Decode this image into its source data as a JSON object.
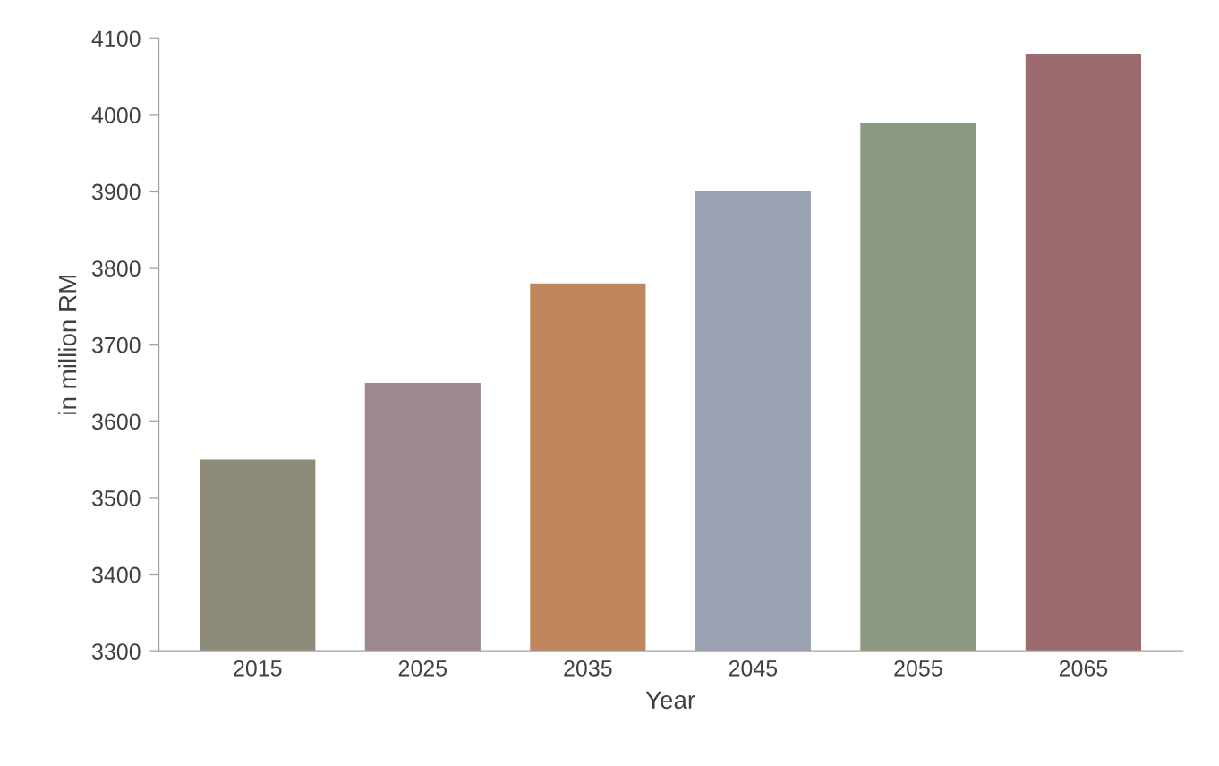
{
  "chart_data": {
    "type": "bar",
    "xlabel": "Year",
    "ylabel": "in million RM",
    "categories": [
      "2015",
      "2025",
      "2035",
      "2045",
      "2055",
      "2065"
    ],
    "values": [
      3550,
      3650,
      3780,
      3900,
      3990,
      4080
    ],
    "colors": [
      "#8e8c78",
      "#9e8890",
      "#c0875e",
      "#9aa2b4",
      "#8b9882",
      "#9b6b70"
    ],
    "ylim": [
      3300,
      4100
    ],
    "yticks": [
      3300,
      3400,
      3500,
      3600,
      3700,
      3800,
      3900,
      4000,
      4100
    ]
  }
}
